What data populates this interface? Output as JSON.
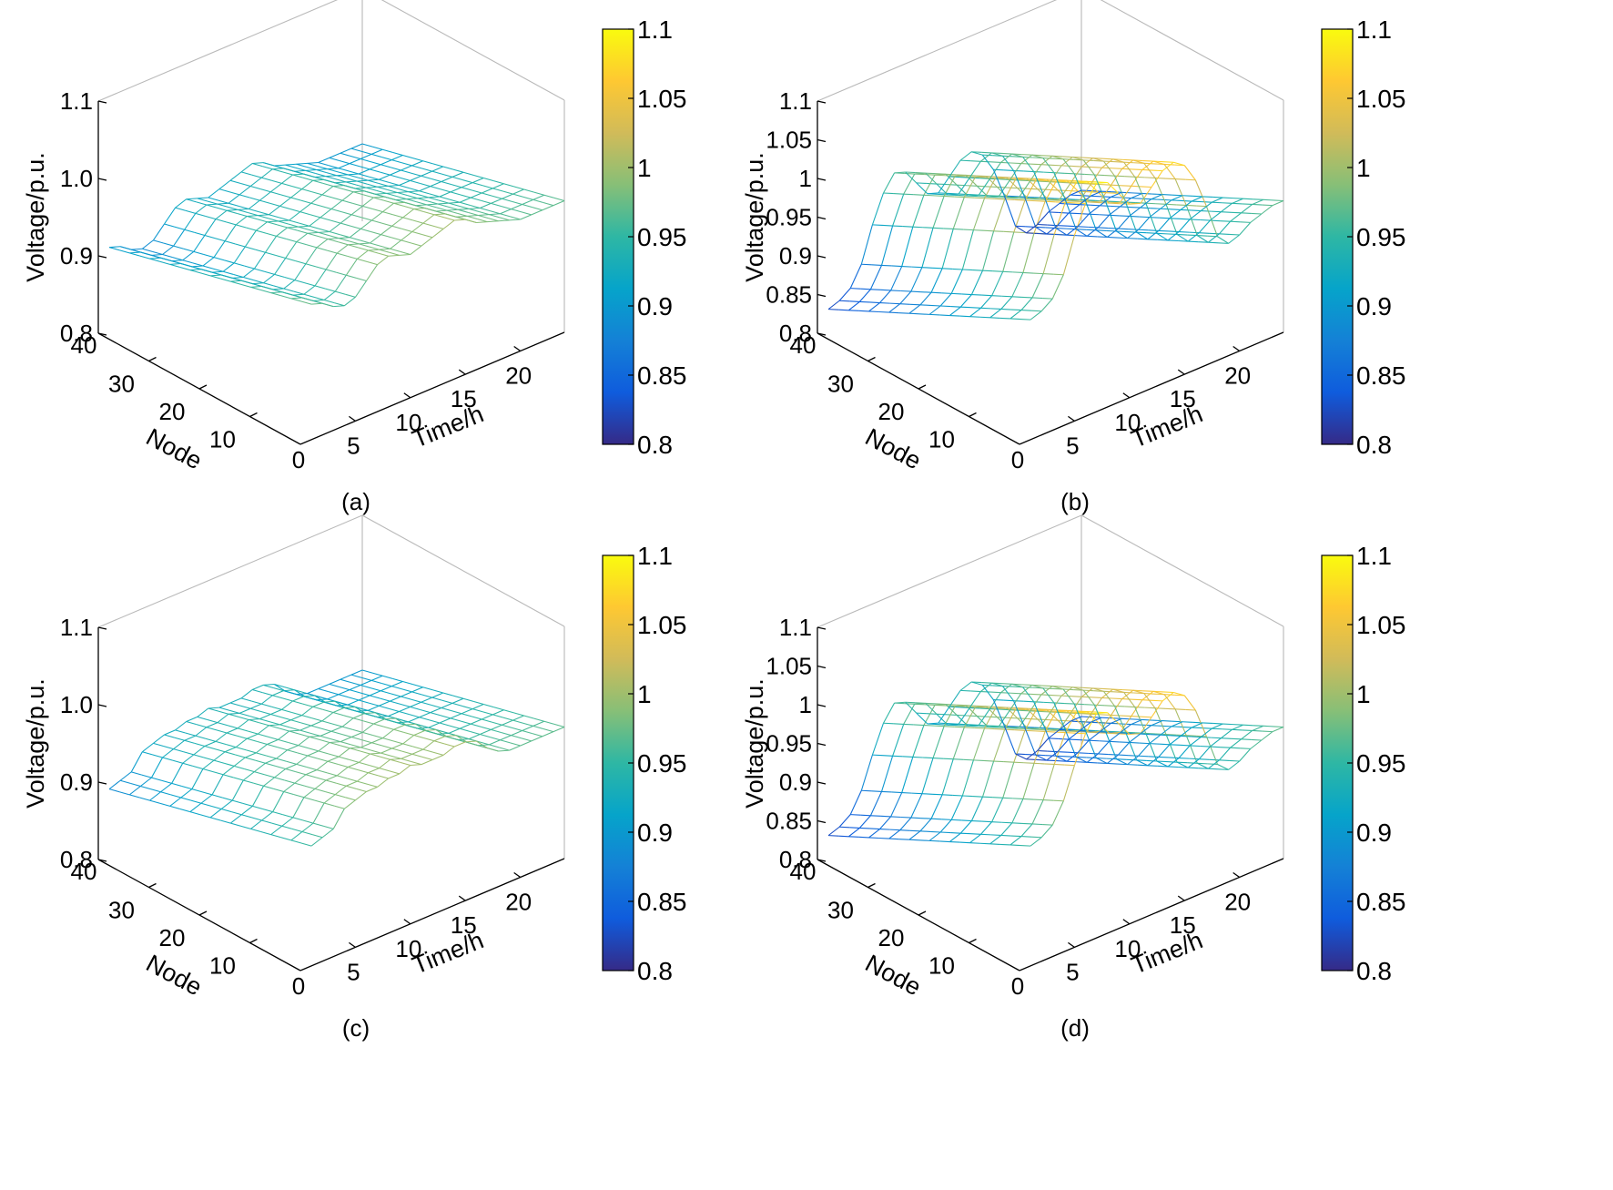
{
  "colormap": {
    "name": "parula",
    "stops": [
      "#352a87",
      "#0f5cdd",
      "#1481d6",
      "#06a4ca",
      "#2eb7a4",
      "#87bf77",
      "#d1bb59",
      "#fec832",
      "#f9fb0e"
    ],
    "range": [
      0.8,
      1.1
    ],
    "tick_labels": [
      "0.8",
      "0.85",
      "0.9",
      "0.95",
      "1",
      "1.05",
      "1.1"
    ]
  },
  "chart_data": [
    {
      "type": "surface",
      "panel_label": "(a)",
      "zlabel": "Voltage/p.u.",
      "xlabel": "Time/h",
      "ylabel": "Node",
      "xlim": [
        0,
        24
      ],
      "ylim": [
        0,
        40
      ],
      "zlim": [
        0.8,
        1.1
      ],
      "z_tick_labels": [
        "0.8",
        "0.9",
        "1.0",
        "1.1"
      ],
      "x_tick_labels": [
        "5",
        "10",
        "15",
        "20"
      ],
      "y_tick_labels": [
        "0",
        "10",
        "20",
        "30",
        "40"
      ],
      "time_voltage_at_node_0": [
        0.97,
        0.975,
        0.97,
        0.96,
        0.955,
        0.96,
        0.975,
        0.99,
        0.995,
        0.99,
        0.985,
        0.99,
        0.995,
        1.0,
        1.005,
        1.0,
        0.99,
        0.985,
        0.98,
        0.975,
        0.97,
        0.97,
        0.97,
        0.97
      ],
      "node_drop_at_node_40": 0.07
    },
    {
      "type": "surface",
      "panel_label": "(b)",
      "zlabel": "Voltage/p.u.",
      "xlabel": "Time/h",
      "ylabel": "Node",
      "xlim": [
        0,
        24
      ],
      "ylim": [
        0,
        40
      ],
      "zlim": [
        0.8,
        1.1
      ],
      "z_tick_labels": [
        "0.8",
        "0.85",
        "0.9",
        "0.95",
        "1",
        "1.05",
        "1.1"
      ],
      "x_tick_labels": [
        "5",
        "10",
        "15",
        "20"
      ],
      "y_tick_labels": [
        "0",
        "10",
        "20",
        "30",
        "40"
      ],
      "time_voltage_at_node_0": [
        0.96,
        0.955,
        0.96,
        0.97,
        0.995,
        1.04,
        1.075,
        1.095,
        1.09,
        1.07,
        1.05,
        1.045,
        1.06,
        1.075,
        1.08,
        1.07,
        1.045,
        1.005,
        0.96,
        0.945,
        0.95,
        0.96,
        0.965,
        0.97
      ],
      "node_drop_at_node_40": 0.13
    },
    {
      "type": "surface",
      "panel_label": "(c)",
      "zlabel": "Voltage/p.u.",
      "xlabel": "Time/h",
      "ylabel": "Node",
      "xlim": [
        0,
        24
      ],
      "ylim": [
        0,
        40
      ],
      "zlim": [
        0.8,
        1.1
      ],
      "z_tick_labels": [
        "0.8",
        "0.9",
        "1.0",
        "1.1"
      ],
      "x_tick_labels": [
        "5",
        "10",
        "15",
        "20"
      ],
      "y_tick_labels": [
        "0",
        "10",
        "20",
        "30",
        "40"
      ],
      "time_voltage_at_node_0": [
        0.955,
        0.955,
        0.96,
        0.965,
        0.985,
        0.99,
        0.995,
        0.995,
        1.0,
        1.0,
        1.005,
        1.0,
        1.0,
        1.0,
        1.005,
        1.005,
        1.0,
        0.985,
        0.975,
        0.97,
        0.97,
        0.97,
        0.97,
        0.97
      ],
      "node_drop_at_node_40": 0.07
    },
    {
      "type": "surface",
      "panel_label": "(d)",
      "zlabel": "Voltage/p.u.",
      "xlabel": "Time/h",
      "ylabel": "Node",
      "xlim": [
        0,
        24
      ],
      "ylim": [
        0,
        40
      ],
      "zlim": [
        0.8,
        1.1
      ],
      "z_tick_labels": [
        "0.8",
        "0.85",
        "0.9",
        "0.95",
        "1",
        "1.05",
        "1.1"
      ],
      "x_tick_labels": [
        "5",
        "10",
        "15",
        "20"
      ],
      "y_tick_labels": [
        "0",
        "10",
        "20",
        "30",
        "40"
      ],
      "time_voltage_at_node_0": [
        0.96,
        0.955,
        0.96,
        0.97,
        0.995,
        1.035,
        1.07,
        1.09,
        1.085,
        1.065,
        1.045,
        1.04,
        1.055,
        1.07,
        1.075,
        1.065,
        1.04,
        1.0,
        0.958,
        0.945,
        0.95,
        0.96,
        0.965,
        0.97
      ],
      "node_drop_at_node_40": 0.13
    }
  ]
}
